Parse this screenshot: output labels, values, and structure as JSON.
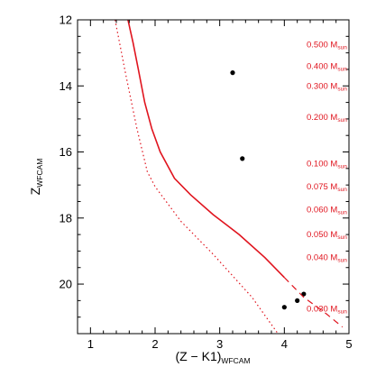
{
  "chart_data": {
    "type": "scatter",
    "xlabel": "(Z − K1)",
    "xlabel_sub": "WFCAM",
    "ylabel": "Z",
    "ylabel_sub": "WFCAM",
    "xlim": [
      0.8,
      5.0
    ],
    "ylim": [
      21.5,
      12.0
    ],
    "x_ticks": [
      1,
      2,
      3,
      4,
      5
    ],
    "x_tick_labels": [
      "1",
      "2",
      "3",
      "4",
      "5"
    ],
    "y_ticks": [
      12,
      14,
      16,
      18,
      20
    ],
    "y_tick_labels": [
      "12",
      "14",
      "16",
      "18",
      "20"
    ],
    "y_reversed": true,
    "grid": false,
    "colors": {
      "points": "#000000",
      "model": "#e0141e"
    },
    "points": [
      [
        3.2,
        13.6
      ],
      [
        3.35,
        16.2
      ],
      [
        4.0,
        20.7
      ],
      [
        4.3,
        20.3
      ],
      [
        4.2,
        20.5
      ]
    ],
    "model_track": {
      "style": "solid",
      "x": [
        1.58,
        1.66,
        1.74,
        1.84,
        1.95,
        2.08,
        2.3,
        2.55,
        2.9,
        3.3,
        3.7,
        4.0
      ],
      "y": [
        12.0,
        12.7,
        13.5,
        14.5,
        15.3,
        16.0,
        16.8,
        17.3,
        17.9,
        18.5,
        19.2,
        19.8
      ]
    },
    "model_extension": {
      "style": "dashed",
      "x": [
        4.0,
        4.3,
        4.65,
        4.9
      ],
      "y": [
        19.8,
        20.4,
        20.9,
        21.3
      ]
    },
    "selection_cut": {
      "style": "dotted",
      "x": [
        1.38,
        1.55,
        1.72,
        1.88,
        2.0,
        2.4,
        2.9,
        3.5,
        3.9
      ],
      "y": [
        12.0,
        13.7,
        15.3,
        16.6,
        17.05,
        18.1,
        19.1,
        20.4,
        21.5
      ]
    },
    "mass_labels": [
      {
        "value": "0.500",
        "unit": "M",
        "sub": "sun",
        "z": 12.75
      },
      {
        "value": "0.400",
        "unit": "M",
        "sub": "sun",
        "z": 13.4
      },
      {
        "value": "0.300",
        "unit": "M",
        "sub": "sun",
        "z": 14.0
      },
      {
        "value": "0.200",
        "unit": "M",
        "sub": "sun",
        "z": 14.95
      },
      {
        "value": "0.100",
        "unit": "M",
        "sub": "sun",
        "z": 16.35
      },
      {
        "value": "0.075",
        "unit": "M",
        "sub": "sun",
        "z": 17.05
      },
      {
        "value": "0.060",
        "unit": "M",
        "sub": "sun",
        "z": 17.75
      },
      {
        "value": "0.050",
        "unit": "M",
        "sub": "sun",
        "z": 18.5
      },
      {
        "value": "0.040",
        "unit": "M",
        "sub": "sun",
        "z": 19.2
      },
      {
        "value": "0.030",
        "unit": "M",
        "sub": "sun",
        "z": 20.75
      }
    ]
  }
}
